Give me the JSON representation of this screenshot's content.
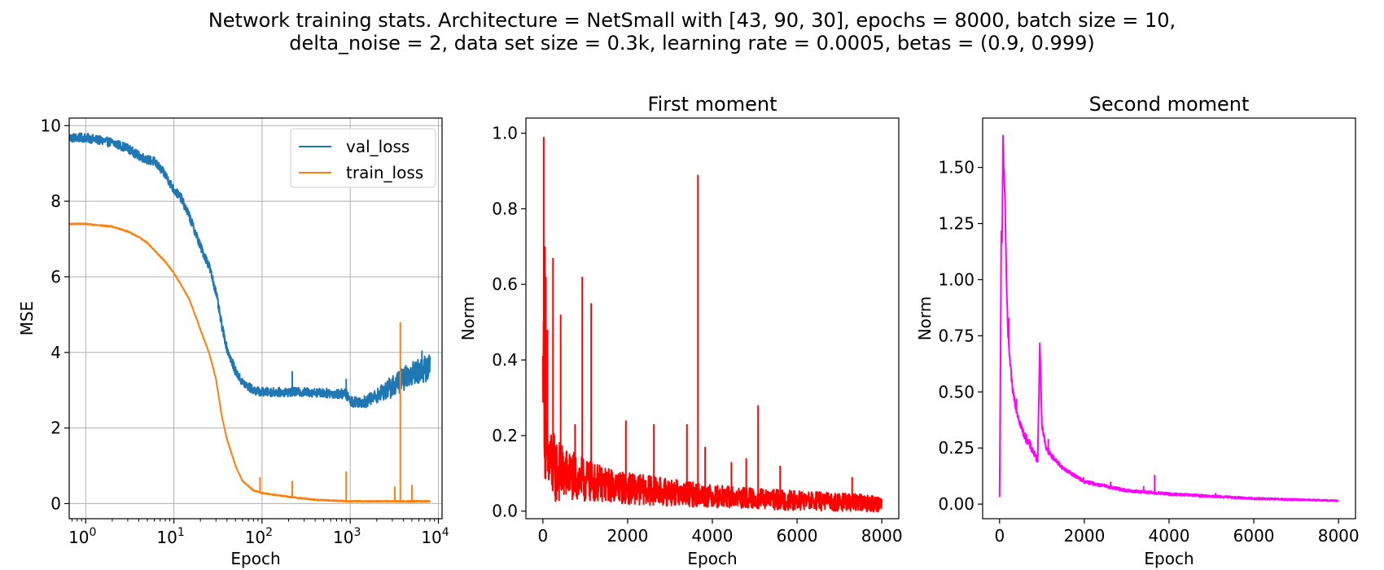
{
  "figure": {
    "title_line1": "Network training stats. Architecture = NetSmall with [43, 90, 30], epochs = 8000, batch size = 10,",
    "title_line2": "delta_noise = 2, data set size = 0.3k, learning rate = 0.0005, betas = (0.9, 0.999)"
  },
  "chart_data": [
    {
      "type": "line",
      "title": "",
      "xlabel": "Epoch",
      "ylabel": "MSE",
      "xscale": "log",
      "xlim": [
        0.65,
        11000
      ],
      "ylim": [
        -0.4,
        10.2
      ],
      "x_ticks": [
        1,
        10,
        100,
        1000,
        10000
      ],
      "x_tick_labels": [
        {
          "base": "10",
          "exp": "0"
        },
        {
          "base": "10",
          "exp": "1"
        },
        {
          "base": "10",
          "exp": "2"
        },
        {
          "base": "10",
          "exp": "3"
        },
        {
          "base": "10",
          "exp": "4"
        }
      ],
      "y_ticks": [
        0,
        2,
        4,
        6,
        8,
        10
      ],
      "grid": true,
      "legend_position": "top-right",
      "series": [
        {
          "name": "val_loss",
          "color": "#1f77b4",
          "noise": [
            [
              400,
              0.12
            ],
            [
              2000,
              0.18
            ],
            [
              3000,
              0.3
            ],
            [
              8000,
              0.35
            ]
          ],
          "points": [
            [
              0.65,
              9.68
            ],
            [
              1,
              9.68
            ],
            [
              2,
              9.55
            ],
            [
              3,
              9.4
            ],
            [
              4,
              9.2
            ],
            [
              5,
              9.1
            ],
            [
              6,
              9.05
            ],
            [
              8,
              8.7
            ],
            [
              10,
              8.3
            ],
            [
              12,
              8.1
            ],
            [
              15,
              7.6
            ],
            [
              18,
              7.1
            ],
            [
              20,
              6.8
            ],
            [
              25,
              6.3
            ],
            [
              30,
              5.6
            ],
            [
              35,
              4.7
            ],
            [
              40,
              4.1
            ],
            [
              50,
              3.5
            ],
            [
              60,
              3.2
            ],
            [
              80,
              3.0
            ],
            [
              100,
              2.95
            ],
            [
              300,
              2.95
            ],
            [
              900,
              2.9
            ],
            [
              1000,
              2.7
            ],
            [
              1500,
              2.7
            ],
            [
              2000,
              2.85
            ],
            [
              3000,
              3.1
            ],
            [
              5000,
              3.45
            ],
            [
              8000,
              3.6
            ]
          ]
        },
        {
          "name": "train_loss",
          "color": "#ff7f0e",
          "noise": [
            [
              400,
              0.015
            ],
            [
              3000,
              0.015
            ],
            [
              8000,
              0.02
            ]
          ],
          "points": [
            [
              0.65,
              7.4
            ],
            [
              1,
              7.4
            ],
            [
              2,
              7.33
            ],
            [
              3,
              7.2
            ],
            [
              4,
              7.05
            ],
            [
              5,
              6.9
            ],
            [
              6,
              6.7
            ],
            [
              8,
              6.4
            ],
            [
              10,
              6.1
            ],
            [
              12,
              5.8
            ],
            [
              15,
              5.4
            ],
            [
              18,
              4.9
            ],
            [
              20,
              4.6
            ],
            [
              25,
              4.0
            ],
            [
              30,
              3.3
            ],
            [
              35,
              2.3
            ],
            [
              40,
              1.7
            ],
            [
              50,
              1.0
            ],
            [
              60,
              0.6
            ],
            [
              80,
              0.35
            ],
            [
              100,
              0.28
            ],
            [
              200,
              0.18
            ],
            [
              400,
              0.1
            ],
            [
              1000,
              0.06
            ],
            [
              8000,
              0.06
            ]
          ]
        }
      ],
      "spikes": [
        {
          "series": 0,
          "x": 220,
          "y": 3.5
        },
        {
          "series": 0,
          "x": 900,
          "y": 3.3
        },
        {
          "series": 0,
          "x": 6500,
          "y": 4.05
        },
        {
          "series": 1,
          "x": 95,
          "y": 0.7
        },
        {
          "series": 1,
          "x": 220,
          "y": 0.6
        },
        {
          "series": 1,
          "x": 900,
          "y": 0.85
        },
        {
          "series": 1,
          "x": 3200,
          "y": 0.45
        },
        {
          "series": 1,
          "x": 3700,
          "y": 4.8
        },
        {
          "series": 1,
          "x": 5000,
          "y": 0.5
        }
      ]
    },
    {
      "type": "line",
      "title": "First moment",
      "xlabel": "Epoch",
      "ylabel": "Norm",
      "xlim": [
        -400,
        8400
      ],
      "ylim": [
        -0.02,
        1.04
      ],
      "x_ticks": [
        0,
        2000,
        4000,
        6000,
        8000
      ],
      "y_ticks": [
        0.0,
        0.2,
        0.4,
        0.6,
        0.8,
        1.0
      ],
      "y_tick_labels": [
        "0.0",
        "0.2",
        "0.4",
        "0.6",
        "0.8",
        "1.0"
      ],
      "grid": false,
      "series": [
        {
          "name": "",
          "color": "#ff0000",
          "noise": [
            [
              0,
              0.12
            ],
            [
              500,
              0.07
            ],
            [
              1500,
              0.045
            ],
            [
              4000,
              0.03
            ],
            [
              8000,
              0.022
            ]
          ],
          "points": [
            [
              0,
              0.35
            ],
            [
              10,
              0.45
            ],
            [
              30,
              0.3
            ],
            [
              60,
              0.15
            ],
            [
              100,
              0.14
            ],
            [
              200,
              0.12
            ],
            [
              300,
              0.11
            ],
            [
              500,
              0.1
            ],
            [
              1000,
              0.08
            ],
            [
              2000,
              0.06
            ],
            [
              3000,
              0.05
            ],
            [
              4000,
              0.04
            ],
            [
              5000,
              0.033
            ],
            [
              6000,
              0.028
            ],
            [
              7000,
              0.024
            ],
            [
              8000,
              0.02
            ]
          ]
        }
      ],
      "spikes": [
        {
          "series": 0,
          "x": 20,
          "y": 0.99
        },
        {
          "series": 0,
          "x": 50,
          "y": 0.7
        },
        {
          "series": 0,
          "x": 70,
          "y": 0.62
        },
        {
          "series": 0,
          "x": 110,
          "y": 0.48
        },
        {
          "series": 0,
          "x": 240,
          "y": 0.67
        },
        {
          "series": 0,
          "x": 420,
          "y": 0.52
        },
        {
          "series": 0,
          "x": 760,
          "y": 0.23
        },
        {
          "series": 0,
          "x": 930,
          "y": 0.62
        },
        {
          "series": 0,
          "x": 1140,
          "y": 0.55
        },
        {
          "series": 0,
          "x": 1960,
          "y": 0.24
        },
        {
          "series": 0,
          "x": 2620,
          "y": 0.23
        },
        {
          "series": 0,
          "x": 3400,
          "y": 0.23
        },
        {
          "series": 0,
          "x": 3660,
          "y": 0.89
        },
        {
          "series": 0,
          "x": 3830,
          "y": 0.17
        },
        {
          "series": 0,
          "x": 4450,
          "y": 0.13
        },
        {
          "series": 0,
          "x": 4800,
          "y": 0.14
        },
        {
          "series": 0,
          "x": 5080,
          "y": 0.28
        },
        {
          "series": 0,
          "x": 5600,
          "y": 0.12
        },
        {
          "series": 0,
          "x": 7300,
          "y": 0.09
        }
      ]
    },
    {
      "type": "line",
      "title": "Second moment",
      "xlabel": "Epoch",
      "ylabel": "Norm",
      "xlim": [
        -400,
        8400
      ],
      "ylim": [
        -0.065,
        1.72
      ],
      "x_ticks": [
        0,
        2000,
        4000,
        6000,
        8000
      ],
      "y_ticks": [
        0.0,
        0.25,
        0.5,
        0.75,
        1.0,
        1.25,
        1.5
      ],
      "y_tick_labels": [
        "0.00",
        "0.25",
        "0.50",
        "0.75",
        "1.00",
        "1.25",
        "1.50"
      ],
      "grid": false,
      "series": [
        {
          "name": "",
          "color": "#ff00ff",
          "noise": [
            [
              0,
              0.02
            ],
            [
              600,
              0.02
            ],
            [
              1500,
              0.008
            ],
            [
              8000,
              0.003
            ]
          ],
          "points": [
            [
              0,
              0.02
            ],
            [
              20,
              0.6
            ],
            [
              40,
              1.2
            ],
            [
              60,
              1.15
            ],
            [
              80,
              1.66
            ],
            [
              100,
              1.5
            ],
            [
              130,
              1.35
            ],
            [
              160,
              1.0
            ],
            [
              200,
              0.75
            ],
            [
              250,
              0.62
            ],
            [
              300,
              0.52
            ],
            [
              400,
              0.42
            ],
            [
              500,
              0.35
            ],
            [
              600,
              0.3
            ],
            [
              700,
              0.27
            ],
            [
              850,
              0.21
            ],
            [
              900,
              0.2
            ],
            [
              950,
              0.72
            ],
            [
              1000,
              0.35
            ],
            [
              1100,
              0.25
            ],
            [
              1200,
              0.22
            ],
            [
              1500,
              0.16
            ],
            [
              2000,
              0.1
            ],
            [
              3000,
              0.06
            ],
            [
              4000,
              0.045
            ],
            [
              5000,
              0.035
            ],
            [
              6000,
              0.025
            ],
            [
              7000,
              0.02
            ],
            [
              8000,
              0.015
            ]
          ]
        }
      ],
      "spikes": [
        {
          "series": 0,
          "x": 220,
          "y": 0.83
        },
        {
          "series": 0,
          "x": 400,
          "y": 0.47
        },
        {
          "series": 0,
          "x": 1150,
          "y": 0.29
        },
        {
          "series": 0,
          "x": 1980,
          "y": 0.12
        },
        {
          "series": 0,
          "x": 2620,
          "y": 0.1
        },
        {
          "series": 0,
          "x": 3400,
          "y": 0.08
        },
        {
          "series": 0,
          "x": 3660,
          "y": 0.13
        },
        {
          "series": 0,
          "x": 5100,
          "y": 0.05
        }
      ]
    }
  ]
}
